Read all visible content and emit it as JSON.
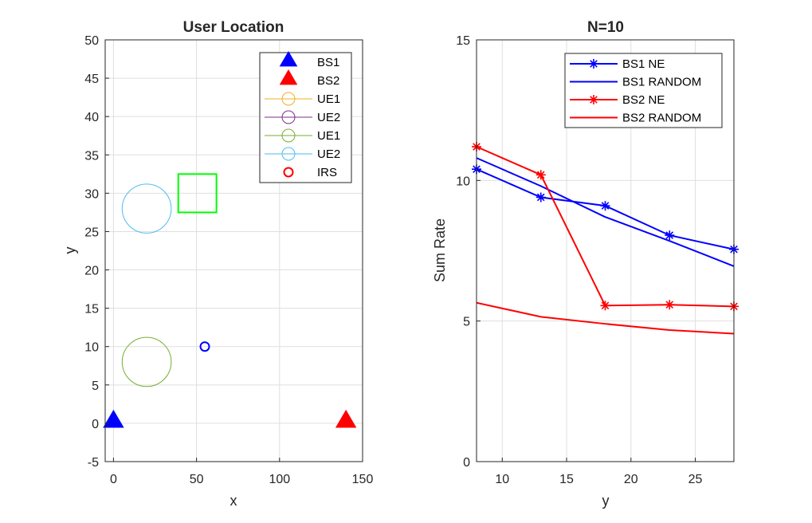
{
  "chart_data": [
    {
      "type": "scatter",
      "title": "User Location",
      "xlabel": "x",
      "ylabel": "y",
      "xlim": [
        -5,
        150
      ],
      "ylim": [
        -5,
        50
      ],
      "xticks": [
        0,
        50,
        100,
        150
      ],
      "yticks": [
        -5,
        0,
        5,
        10,
        15,
        20,
        25,
        30,
        35,
        40,
        45,
        50
      ],
      "grid": true,
      "legend_position": "top-right",
      "legend": [
        {
          "label": "BS1",
          "marker": "triangle",
          "color": "#0000ff",
          "filled": true
        },
        {
          "label": "BS2",
          "marker": "triangle",
          "color": "#ff0000",
          "filled": true
        },
        {
          "label": "UE1",
          "marker": "circle",
          "color": "#edb120",
          "filled": false
        },
        {
          "label": "UE2",
          "marker": "circle",
          "color": "#7e2f8e",
          "filled": false
        },
        {
          "label": "UE1",
          "marker": "circle",
          "color": "#77ac30",
          "filled": false
        },
        {
          "label": "UE2",
          "marker": "circle",
          "color": "#4dbeee",
          "filled": false
        },
        {
          "label": "IRS",
          "marker": "circle",
          "color": "#ff0000",
          "filled": false
        }
      ],
      "points": [
        {
          "name": "BS1",
          "x": 0,
          "y": 0,
          "marker": "triangle",
          "color": "#0000ff"
        },
        {
          "name": "BS2",
          "x": 140,
          "y": 0,
          "marker": "triangle",
          "color": "#ff0000"
        },
        {
          "name": "IRS",
          "x": 55,
          "y": 10,
          "marker": "circle",
          "color": "#0000ff"
        }
      ],
      "regions": [
        {
          "shape": "circle",
          "cx": 20,
          "cy": 8,
          "r": 3.2,
          "color": "#77ac30"
        },
        {
          "shape": "circle",
          "cx": 20,
          "cy": 28,
          "r": 3.2,
          "color": "#4dbeee"
        },
        {
          "shape": "rect",
          "x0": 39,
          "x1": 62,
          "y0": 27.5,
          "y1": 32.5,
          "color": "#00ff00"
        }
      ]
    },
    {
      "type": "line",
      "title": "N=10",
      "xlabel": "y",
      "ylabel": "Sum Rate",
      "xlim": [
        8,
        28
      ],
      "ylim": [
        0,
        15
      ],
      "xticks": [
        10,
        15,
        20,
        25
      ],
      "yticks": [
        0,
        5,
        10,
        15
      ],
      "grid": true,
      "legend_position": "top-right",
      "x": [
        8,
        13,
        18,
        23,
        28
      ],
      "series": [
        {
          "name": "BS1 NE",
          "color": "#0000ff",
          "marker": "star",
          "values": [
            10.4,
            9.4,
            9.1,
            8.05,
            7.55
          ]
        },
        {
          "name": "BS1 RANDOM",
          "color": "#0000ff",
          "marker": "none",
          "values": [
            10.8,
            9.8,
            8.7,
            7.85,
            6.95
          ]
        },
        {
          "name": "BS2 NE",
          "color": "#ff0000",
          "marker": "star",
          "values": [
            11.2,
            10.2,
            5.55,
            5.58,
            5.52
          ]
        },
        {
          "name": "BS2 RANDOM",
          "color": "#ff0000",
          "marker": "none",
          "values": [
            5.65,
            5.15,
            4.9,
            4.68,
            4.55
          ]
        }
      ]
    }
  ]
}
